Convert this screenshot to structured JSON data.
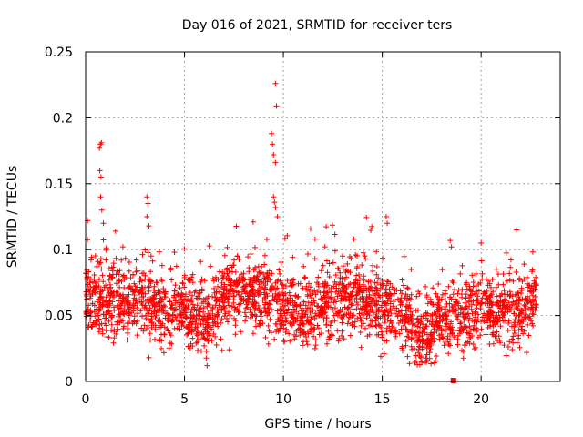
{
  "chart_data": {
    "type": "scatter",
    "title": "Day 016 of 2021, SRMTID for receiver ters",
    "xlabel": "GPS time / hours",
    "ylabel": "SRMTID / TECUs",
    "xlim": [
      0,
      24
    ],
    "ylim": [
      0,
      0.25
    ],
    "xticks": [
      0,
      5,
      10,
      15,
      20
    ],
    "xtick_labels": [
      "0",
      "5",
      "10",
      "15",
      "20"
    ],
    "yticks": [
      0,
      0.05,
      0.1,
      0.15,
      0.2,
      0.25
    ],
    "ytick_labels": [
      "0",
      "0.05",
      "0.1",
      "0.15",
      "0.2",
      "0.25"
    ],
    "grid": true,
    "marker": "+",
    "colors": {
      "series": "#ff0000",
      "grid": "#a0a0a0",
      "axis": "#000000"
    },
    "x_range_hours": [
      0,
      22.8
    ],
    "baseline_profile": [
      [
        0,
        0.065
      ],
      [
        1,
        0.06
      ],
      [
        2,
        0.06
      ],
      [
        3,
        0.063
      ],
      [
        4,
        0.05
      ],
      [
        5,
        0.055
      ],
      [
        6,
        0.045
      ],
      [
        7,
        0.065
      ],
      [
        8,
        0.068
      ],
      [
        9,
        0.067
      ],
      [
        10,
        0.055
      ],
      [
        11,
        0.052
      ],
      [
        12,
        0.057
      ],
      [
        13,
        0.062
      ],
      [
        14,
        0.06
      ],
      [
        15,
        0.055
      ],
      [
        16,
        0.05
      ],
      [
        17,
        0.035
      ],
      [
        18,
        0.045
      ],
      [
        19,
        0.05
      ],
      [
        20,
        0.055
      ],
      [
        21,
        0.055
      ],
      [
        22,
        0.055
      ],
      [
        22.8,
        0.06
      ]
    ],
    "notable_points": [
      {
        "x": 0.75,
        "y": 0.18
      },
      {
        "x": 0.7,
        "y": 0.177
      },
      {
        "x": 0.8,
        "y": 0.181
      },
      {
        "x": 0.72,
        "y": 0.16
      },
      {
        "x": 0.78,
        "y": 0.155
      },
      {
        "x": 0.76,
        "y": 0.14
      },
      {
        "x": 0.82,
        "y": 0.13
      },
      {
        "x": 0.9,
        "y": 0.12
      },
      {
        "x": 3.1,
        "y": 0.14
      },
      {
        "x": 3.15,
        "y": 0.135
      },
      {
        "x": 3.1,
        "y": 0.125
      },
      {
        "x": 3.2,
        "y": 0.118
      },
      {
        "x": 9.6,
        "y": 0.226
      },
      {
        "x": 9.65,
        "y": 0.209
      },
      {
        "x": 9.4,
        "y": 0.188
      },
      {
        "x": 9.45,
        "y": 0.18
      },
      {
        "x": 9.5,
        "y": 0.172
      },
      {
        "x": 9.6,
        "y": 0.166
      },
      {
        "x": 9.5,
        "y": 0.14
      },
      {
        "x": 9.55,
        "y": 0.136
      },
      {
        "x": 9.6,
        "y": 0.132
      },
      {
        "x": 9.7,
        "y": 0.125
      },
      {
        "x": 15.2,
        "y": 0.125
      },
      {
        "x": 15.25,
        "y": 0.12
      },
      {
        "x": 11.6,
        "y": 0.108
      },
      {
        "x": 20.0,
        "y": 0.105
      },
      {
        "x": 21.8,
        "y": 0.115
      },
      {
        "x": 18.5,
        "y": 0.102
      },
      {
        "x": 0.1,
        "y": 0.122
      },
      {
        "x": 3.2,
        "y": 0.018
      },
      {
        "x": 15.1,
        "y": 0.021
      },
      {
        "x": 17.0,
        "y": 0.015
      },
      {
        "x": 22.3,
        "y": 0.022
      }
    ],
    "zero_marker": {
      "x": 18.6,
      "y": 0
    }
  }
}
